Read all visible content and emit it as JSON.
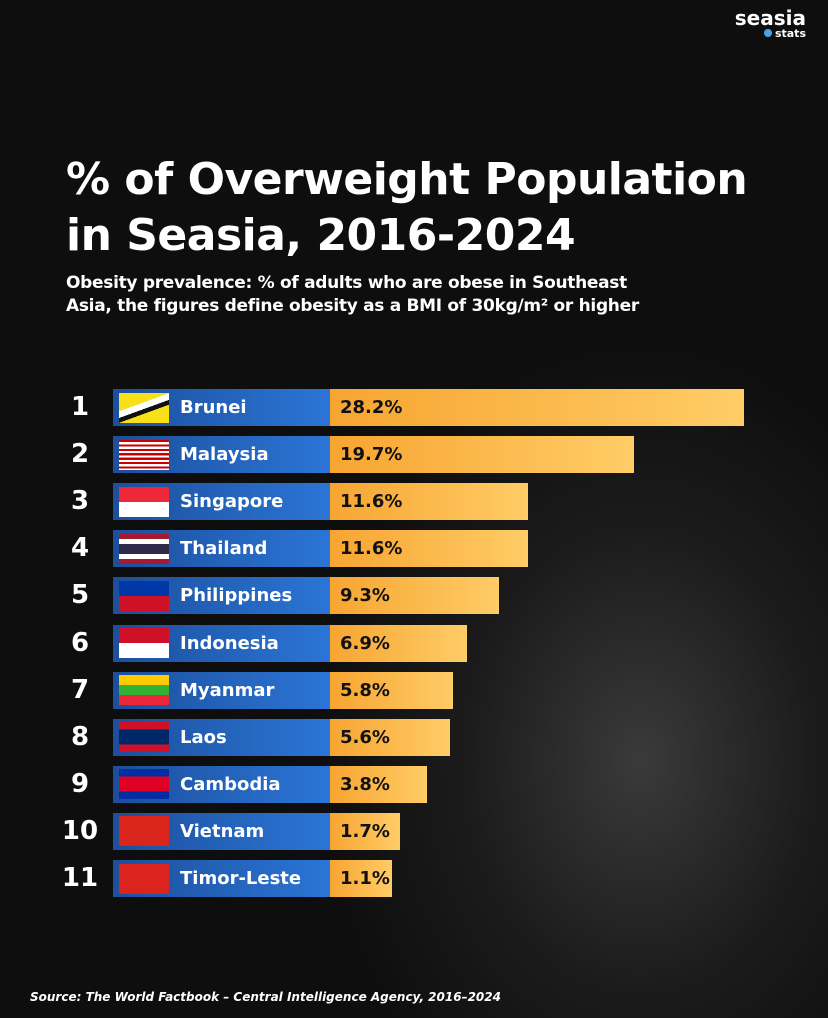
{
  "logo": {
    "name": "seasia",
    "sub": "stats"
  },
  "chart_data": {
    "type": "bar",
    "orientation": "horizontal",
    "title": "% of Overweight Population in Seasia, 2016-2024",
    "subtitle": "Obesity prevalence: % of adults who are obese in Southeast Asia, the figures define obesity as a BMI of 30kg/m² or higher",
    "ranks": [
      1,
      2,
      3,
      4,
      5,
      6,
      7,
      8,
      9,
      10,
      11
    ],
    "categories": [
      "Brunei",
      "Malaysia",
      "Singapore",
      "Thailand",
      "Philippines",
      "Indonesia",
      "Myanmar",
      "Laos",
      "Cambodia",
      "Vietnam",
      "Timor-Leste"
    ],
    "values": [
      28.2,
      19.7,
      11.6,
      11.6,
      9.3,
      6.9,
      5.8,
      5.6,
      3.8,
      1.7,
      1.1
    ],
    "value_labels": [
      "28.2%",
      "19.7%",
      "11.6%",
      "11.6%",
      "9.3%",
      "6.9%",
      "5.8%",
      "5.6%",
      "3.8%",
      "1.7%",
      "1.1%"
    ],
    "color": "#f7a531",
    "source": "Source: The World Factbook – Central Intelligence Agency, 2016–2024"
  }
}
